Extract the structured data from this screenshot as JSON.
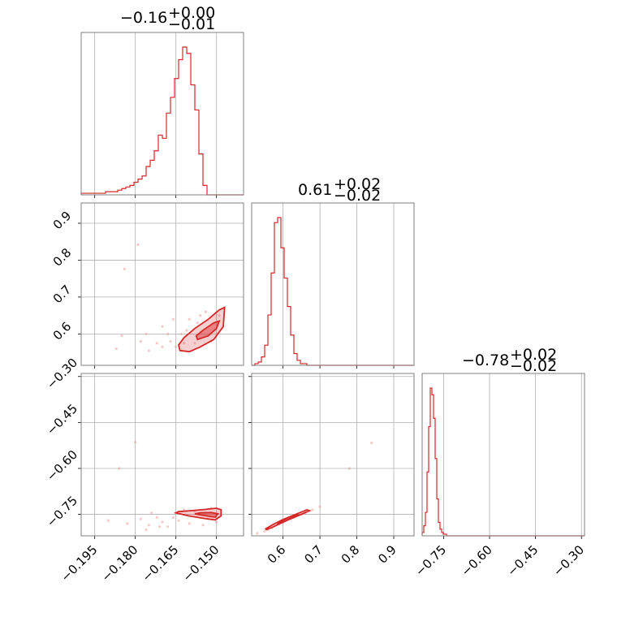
{
  "chart_data": {
    "type": "corner",
    "color": "#d62728",
    "params": [
      {
        "range": [
          -0.2,
          -0.14
        ],
        "ticks": [
          -0.195,
          -0.18,
          -0.165,
          -0.15
        ],
        "tick_labels": [
          "−0.195",
          "−0.180",
          "−0.165",
          "−0.150"
        ],
        "title_main": "−0.16",
        "title_plus": "+0.00",
        "title_minus": "−0.01",
        "median": -0.155
      },
      {
        "range": [
          0.515,
          0.955
        ],
        "ticks": [
          0.6,
          0.7,
          0.8,
          0.9
        ],
        "tick_labels": [
          "0.6",
          "0.7",
          "0.8",
          "0.9"
        ],
        "title_main": "0.61",
        "title_plus": "+0.02",
        "title_minus": "−0.02",
        "median": 0.61
      },
      {
        "range": [
          -0.82,
          -0.29
        ],
        "ticks": [
          -0.75,
          -0.6,
          -0.45,
          -0.3
        ],
        "tick_labels": [
          "−0.75",
          "−0.60",
          "−0.45",
          "−0.30"
        ],
        "title_main": "−0.78",
        "title_plus": "+0.02",
        "title_minus": "−0.02",
        "median": -0.78
      }
    ],
    "hist1": {
      "edges_start": -0.2,
      "bin": 0.0015,
      "counts": [
        1,
        1,
        1,
        1,
        1,
        1,
        2,
        2,
        2,
        3,
        4,
        5,
        6,
        8,
        10,
        12,
        18,
        22,
        28,
        38,
        36,
        52,
        62,
        74,
        86,
        94,
        90,
        70,
        54,
        26,
        6,
        0,
        0,
        0,
        0,
        0,
        0,
        0,
        0,
        0
      ]
    },
    "hist2": {
      "edges_start": 0.515,
      "bin": 0.0088,
      "counts": [
        0,
        1,
        2,
        5,
        12,
        30,
        55,
        85,
        88,
        70,
        52,
        35,
        18,
        7,
        3,
        1,
        1,
        0,
        0,
        0,
        0,
        0,
        0,
        0,
        0,
        0,
        0,
        0,
        0,
        0,
        0,
        0,
        0,
        0,
        0,
        0,
        0,
        0,
        0,
        0,
        0,
        0,
        0,
        0,
        0,
        0,
        0,
        0,
        0,
        0
      ]
    },
    "hist3": {
      "edges_start": -0.82,
      "bin": 0.0053,
      "counts": [
        2,
        6,
        14,
        38,
        65,
        88,
        84,
        70,
        46,
        22,
        8,
        4,
        2,
        1,
        1,
        0,
        0,
        0,
        0,
        0,
        0,
        0,
        0,
        0,
        0,
        0,
        0,
        0,
        0,
        0,
        0,
        0,
        0,
        0,
        0,
        0,
        0,
        0,
        0,
        0,
        0,
        0,
        0,
        0,
        0,
        0,
        0,
        0,
        0,
        0,
        0,
        0,
        0,
        0,
        0,
        0,
        0,
        0,
        0,
        0,
        0,
        0,
        0,
        0,
        0,
        0,
        0,
        0,
        0,
        0,
        0,
        0,
        0,
        0,
        0,
        0,
        0,
        0,
        0,
        0,
        0,
        0,
        0,
        0,
        0,
        0,
        0,
        0,
        0,
        0,
        0,
        0,
        0,
        0,
        0,
        0,
        0,
        0,
        0,
        0
      ]
    },
    "contour_21": {
      "outer": [
        [
          -0.1635,
          0.555
        ],
        [
          -0.16,
          0.552
        ],
        [
          -0.156,
          0.565
        ],
        [
          -0.151,
          0.585
        ],
        [
          -0.1475,
          0.62
        ],
        [
          -0.147,
          0.672
        ],
        [
          -0.149,
          0.665
        ],
        [
          -0.153,
          0.64
        ],
        [
          -0.158,
          0.615
        ],
        [
          -0.162,
          0.59
        ],
        [
          -0.164,
          0.57
        ]
      ],
      "inner": [
        [
          -0.157,
          0.585
        ],
        [
          -0.153,
          0.595
        ],
        [
          -0.15,
          0.615
        ],
        [
          -0.149,
          0.635
        ],
        [
          -0.151,
          0.63
        ],
        [
          -0.155,
          0.61
        ],
        [
          -0.1575,
          0.595
        ]
      ]
    },
    "contour_31": {
      "outer": [
        [
          -0.165,
          -0.745
        ],
        [
          -0.16,
          -0.7555
        ],
        [
          -0.154,
          -0.764
        ],
        [
          -0.1505,
          -0.768
        ],
        [
          -0.1483,
          -0.755
        ],
        [
          -0.1483,
          -0.735
        ],
        [
          -0.15,
          -0.73
        ],
        [
          -0.155,
          -0.7345
        ],
        [
          -0.161,
          -0.739
        ],
        [
          -0.164,
          -0.741
        ]
      ],
      "inner": [
        [
          -0.158,
          -0.7485
        ],
        [
          -0.153,
          -0.756
        ],
        [
          -0.1505,
          -0.759
        ],
        [
          -0.1495,
          -0.748
        ],
        [
          -0.152,
          -0.744
        ],
        [
          -0.156,
          -0.745
        ]
      ]
    },
    "contour_32": {
      "outer": [
        [
          0.555,
          -0.8
        ],
        [
          0.575,
          -0.79
        ],
        [
          0.605,
          -0.772
        ],
        [
          0.64,
          -0.755
        ],
        [
          0.672,
          -0.738
        ],
        [
          0.665,
          -0.735
        ],
        [
          0.63,
          -0.752
        ],
        [
          0.598,
          -0.768
        ],
        [
          0.57,
          -0.785
        ],
        [
          0.553,
          -0.797
        ]
      ],
      "inner": [
        [
          0.585,
          -0.783
        ],
        [
          0.61,
          -0.77
        ],
        [
          0.64,
          -0.752
        ],
        [
          0.635,
          -0.75
        ],
        [
          0.605,
          -0.766
        ],
        [
          0.588,
          -0.778
        ]
      ]
    },
    "scatter_21": [
      [
        -0.184,
        0.776
      ],
      [
        -0.179,
        0.842
      ],
      [
        -0.187,
        0.56
      ],
      [
        -0.185,
        0.595
      ],
      [
        -0.175,
        0.555
      ],
      [
        -0.172,
        0.575
      ],
      [
        -0.17,
        0.62
      ],
      [
        -0.168,
        0.6
      ],
      [
        -0.167,
        0.58
      ],
      [
        -0.165,
        0.565
      ],
      [
        -0.163,
        0.6
      ],
      [
        -0.161,
        0.61
      ],
      [
        -0.158,
        0.575
      ],
      [
        -0.156,
        0.65
      ],
      [
        -0.154,
        0.66
      ],
      [
        -0.152,
        0.58
      ],
      [
        -0.15,
        0.6
      ],
      [
        -0.149,
        0.65
      ],
      [
        -0.166,
        0.64
      ],
      [
        -0.17,
        0.565
      ],
      [
        -0.176,
        0.6
      ],
      [
        -0.178,
        0.58
      ],
      [
        -0.16,
        0.64
      ],
      [
        -0.157,
        0.63
      ],
      [
        -0.162,
        0.575
      ]
    ],
    "scatter_31": [
      [
        -0.18,
        -0.515
      ],
      [
        -0.186,
        -0.6
      ],
      [
        -0.19,
        -0.77
      ],
      [
        -0.178,
        -0.765
      ],
      [
        -0.175,
        -0.785
      ],
      [
        -0.172,
        -0.76
      ],
      [
        -0.17,
        -0.775
      ],
      [
        -0.168,
        -0.79
      ],
      [
        -0.166,
        -0.76
      ],
      [
        -0.164,
        -0.77
      ],
      [
        -0.162,
        -0.735
      ],
      [
        -0.16,
        -0.78
      ],
      [
        -0.158,
        -0.74
      ],
      [
        -0.155,
        -0.785
      ],
      [
        -0.152,
        -0.73
      ],
      [
        -0.15,
        -0.775
      ],
      [
        -0.174,
        -0.745
      ],
      [
        -0.183,
        -0.78
      ],
      [
        -0.176,
        -0.8
      ],
      [
        -0.171,
        -0.79
      ]
    ],
    "scatter_32": [
      [
        0.84,
        -0.517
      ],
      [
        0.78,
        -0.6
      ],
      [
        0.53,
        -0.812
      ],
      [
        0.55,
        -0.805
      ],
      [
        0.57,
        -0.795
      ],
      [
        0.59,
        -0.782
      ],
      [
        0.62,
        -0.765
      ],
      [
        0.65,
        -0.75
      ],
      [
        0.68,
        -0.735
      ],
      [
        0.7,
        -0.725
      ],
      [
        0.56,
        -0.8
      ],
      [
        0.6,
        -0.778
      ],
      [
        0.63,
        -0.76
      ],
      [
        0.66,
        -0.745
      ]
    ]
  }
}
